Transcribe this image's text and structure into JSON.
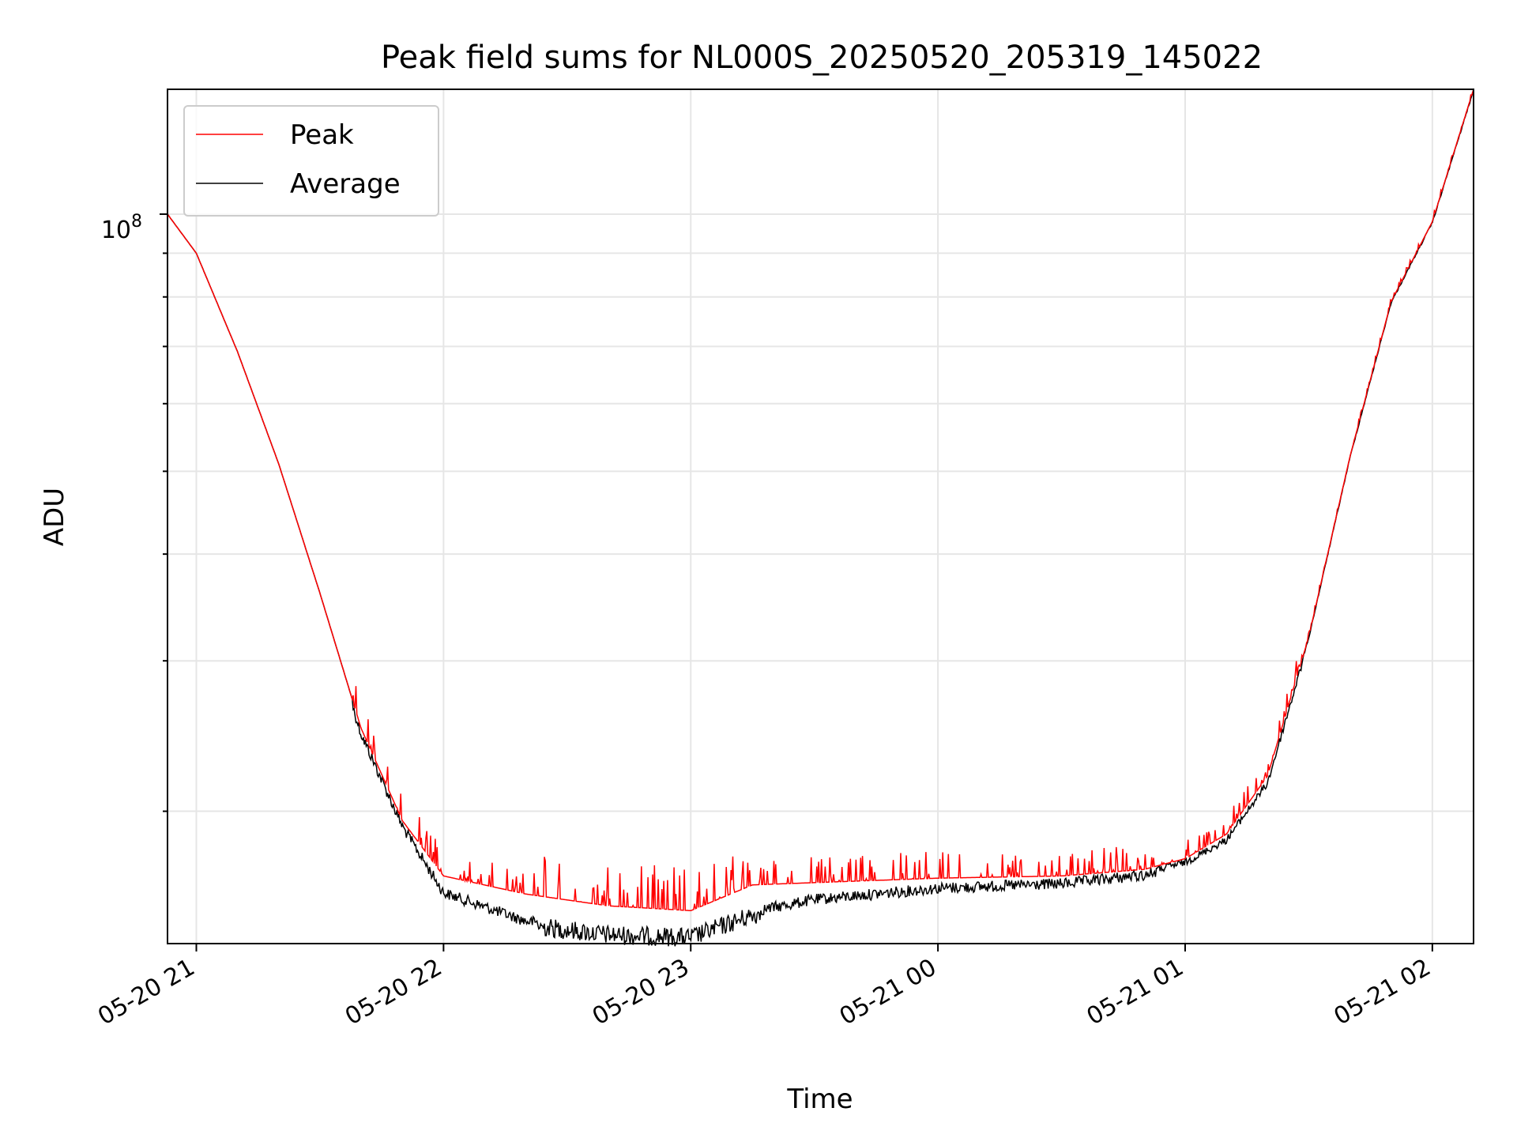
{
  "chart_data": {
    "type": "line",
    "title": "Peak field sums for NL000S_20250520_205319_145022",
    "xlabel": "Time",
    "ylabel": "ADU",
    "yscale": "log",
    "grid": true,
    "legend_position": "top-left",
    "xlim": [
      "2025-05-20 20:53",
      "2025-05-21 02:10"
    ],
    "ylim": [
      14000000,
      140000000
    ],
    "x_ticks": [
      "05-20 21",
      "05-20 22",
      "05-20 23",
      "05-21 00",
      "05-21 01",
      "05-21 02"
    ],
    "y_tick_label": {
      "base": "10",
      "exponent": "8"
    },
    "x": [
      "2025-05-20 20:53",
      "2025-05-20 21:00",
      "2025-05-20 21:10",
      "2025-05-20 21:20",
      "2025-05-20 21:30",
      "2025-05-20 21:40",
      "2025-05-20 21:50",
      "2025-05-20 22:00",
      "2025-05-20 22:20",
      "2025-05-20 22:40",
      "2025-05-20 23:00",
      "2025-05-20 23:15",
      "2025-05-20 23:30",
      "2025-05-21 00:00",
      "2025-05-21 00:30",
      "2025-05-21 00:50",
      "2025-05-21 01:00",
      "2025-05-21 01:10",
      "2025-05-21 01:20",
      "2025-05-21 01:30",
      "2025-05-21 01:40",
      "2025-05-21 01:50",
      "2025-05-21 02:00",
      "2025-05-21 02:10"
    ],
    "series": [
      {
        "name": "Peak",
        "color": "#ff0000",
        "values": [
          100000000,
          90000000,
          69000000,
          51000000,
          36000000,
          25000000,
          19500000,
          16800000,
          16000000,
          15500000,
          15300000,
          16400000,
          16500000,
          16700000,
          16800000,
          17100000,
          17600000,
          18800000,
          22000000,
          32000000,
          52000000,
          79000000,
          98000000,
          140000000
        ]
      },
      {
        "name": "Average",
        "color": "#000000",
        "values": [
          100000000,
          90000000,
          69000000,
          51000000,
          36000000,
          25000000,
          19500000,
          16300000,
          15100000,
          14700000,
          14600000,
          15500000,
          16000000,
          16500000,
          16700000,
          17100000,
          17600000,
          18700000,
          21800000,
          32000000,
          52000000,
          79000000,
          98000000,
          140000000
        ]
      }
    ]
  }
}
